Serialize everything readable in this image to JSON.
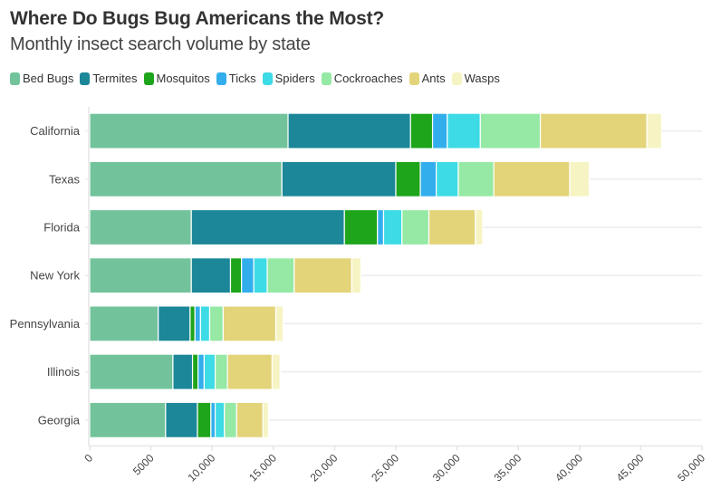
{
  "chart_data": {
    "type": "bar",
    "orientation": "horizontal",
    "stacked": true,
    "title": "Where Do Bugs Bug Americans the Most?",
    "subtitle": "Monthly insect search volume by state",
    "xlabel": "",
    "ylabel": "",
    "xlim": [
      0,
      50000
    ],
    "x_ticks": [
      0,
      5000,
      10000,
      15000,
      20000,
      25000,
      30000,
      35000,
      40000,
      45000,
      50000
    ],
    "x_tick_labels": [
      "0",
      "5000",
      "10,000",
      "15,000",
      "20,000",
      "25,000",
      "30,000",
      "35,000",
      "40,000",
      "45,000",
      "50,000"
    ],
    "grid": true,
    "legend_position": "top-left",
    "categories": [
      "California",
      "Texas",
      "Florida",
      "New York",
      "Pennsylvania",
      "Illinois",
      "Georgia"
    ],
    "series": [
      {
        "name": "Bed Bugs",
        "color": "#72c39b",
        "values": [
          16200,
          15700,
          8300,
          8300,
          5600,
          6800,
          6200
        ]
      },
      {
        "name": "Termites",
        "color": "#1b8798",
        "values": [
          10000,
          9300,
          12500,
          3200,
          2600,
          1600,
          2600
        ]
      },
      {
        "name": "Mosquitos",
        "color": "#1ea51b",
        "values": [
          1800,
          2000,
          2700,
          900,
          400,
          450,
          1100
        ]
      },
      {
        "name": "Ticks",
        "color": "#32aeec",
        "values": [
          1200,
          1300,
          500,
          1000,
          450,
          500,
          350
        ]
      },
      {
        "name": "Spiders",
        "color": "#3ddbe5",
        "values": [
          2700,
          1800,
          1500,
          1100,
          750,
          900,
          750
        ]
      },
      {
        "name": "Cockroaches",
        "color": "#95e9a4",
        "values": [
          4900,
          2900,
          2200,
          2200,
          1100,
          1000,
          1000
        ]
      },
      {
        "name": "Ants",
        "color": "#e3d47a",
        "values": [
          8700,
          6200,
          3800,
          4700,
          4300,
          3650,
          2150
        ]
      },
      {
        "name": "Wasps",
        "color": "#f7f4c4",
        "values": [
          1200,
          1600,
          600,
          750,
          600,
          650,
          450
        ]
      }
    ]
  }
}
